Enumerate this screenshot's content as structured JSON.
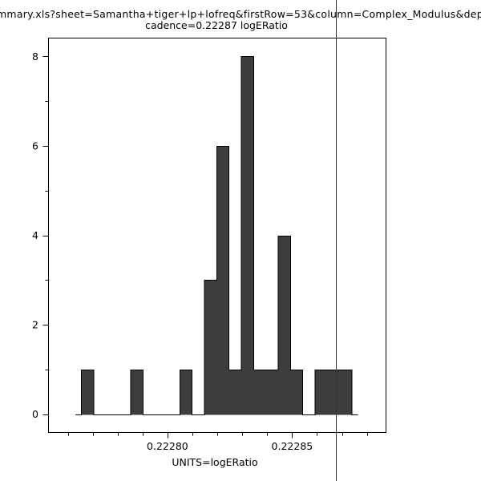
{
  "title": {
    "line1": "mmary.xls?sheet=Samantha+tiger+lp+lofreq&firstRow=53&column=Complex_Modulus&depende",
    "line2": "cadence=0.22287 logERatio"
  },
  "chart_data": {
    "type": "bar",
    "subtype": "histogram",
    "xlabel": "UNITS=logERatio",
    "ylabel": "",
    "bin_start": 0.2227655,
    "bin_width": 4.93e-06,
    "counts": [
      1,
      0,
      0,
      0,
      1,
      0,
      0,
      0,
      1,
      0,
      3,
      6,
      1,
      8,
      1,
      1,
      4,
      1,
      0,
      1,
      1,
      1
    ],
    "xlim": [
      0.2227521,
      0.2228875
    ],
    "ylim": [
      -0.4,
      8.42
    ],
    "x_major_ticks": [
      {
        "value": 0.2228,
        "label": "0.22280"
      },
      {
        "value": 0.22285,
        "label": "0.22285"
      }
    ],
    "x_minor_ticks": [
      0.22276,
      0.22277,
      0.22278,
      0.22279,
      0.22281,
      0.22282,
      0.22283,
      0.22284,
      0.22286,
      0.22287,
      0.22288
    ],
    "y_major_ticks": [
      {
        "value": 0,
        "label": "0"
      },
      {
        "value": 2,
        "label": "2"
      },
      {
        "value": 4,
        "label": "4"
      },
      {
        "value": 6,
        "label": "6"
      },
      {
        "value": 8,
        "label": "8"
      }
    ],
    "y_minor_ticks": [
      1,
      3,
      5,
      7
    ],
    "marker_value": 0.2228677,
    "grid": false,
    "legend": "none",
    "colors": {
      "bar_fill": "#3d3d3d",
      "bar_stroke": "#000000",
      "marker_line": "#333333",
      "frame": "#000000",
      "background": "#ffffff",
      "text": "#000000"
    }
  }
}
